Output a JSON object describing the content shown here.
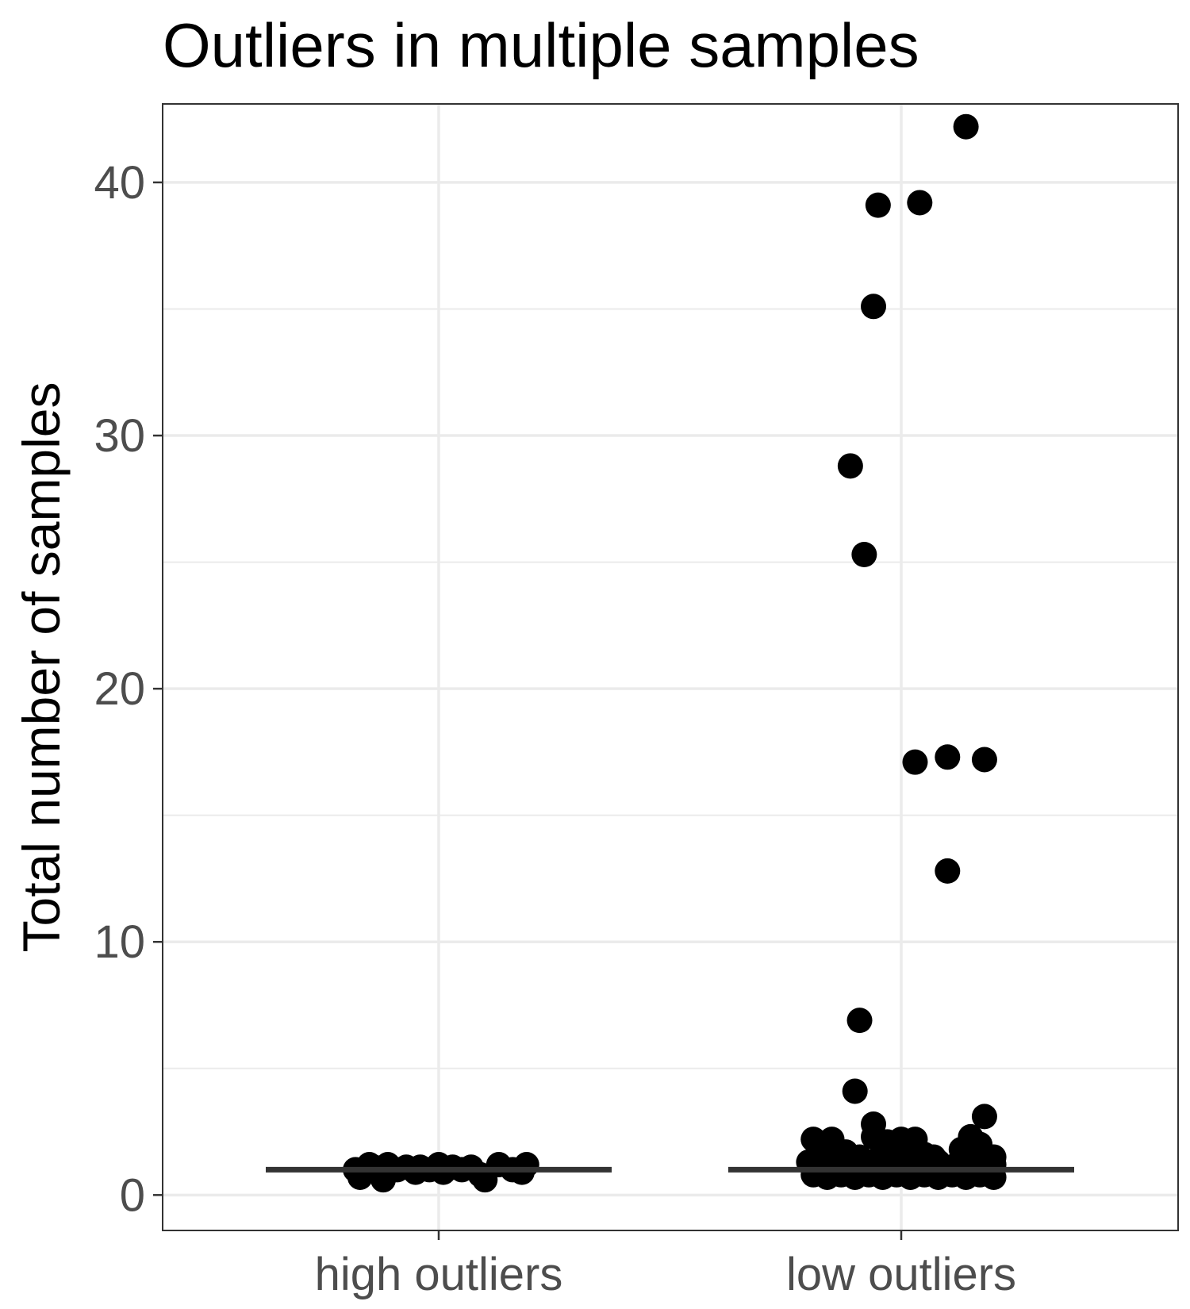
{
  "chart_data": {
    "type": "scatter",
    "title": "Outliers in multiple samples",
    "xlabel": "",
    "ylabel": "Total number of samples",
    "categories": [
      "high outliers",
      "low outliers"
    ],
    "ylim": [
      -1.4,
      43.1
    ],
    "yticks": [
      0,
      10,
      20,
      30,
      40
    ],
    "grid": true,
    "legend": "none",
    "colors": {
      "points": "#000000",
      "median_line": "#333333",
      "grid": "#ebebeb",
      "panel_border": "#333333"
    },
    "median": [
      1,
      1
    ],
    "series": [
      {
        "category": "high outliers",
        "points": [
          {
            "x": -0.18,
            "y": 1.0
          },
          {
            "x": -0.16,
            "y": 0.9
          },
          {
            "x": -0.14,
            "y": 1.1
          },
          {
            "x": -0.17,
            "y": 0.7
          },
          {
            "x": -0.15,
            "y": 1.2
          },
          {
            "x": -0.12,
            "y": 0.8
          },
          {
            "x": -0.11,
            "y": 1.2
          },
          {
            "x": -0.12,
            "y": 0.6
          },
          {
            "x": -0.09,
            "y": 1.0
          },
          {
            "x": -0.07,
            "y": 1.1
          },
          {
            "x": -0.05,
            "y": 0.9
          },
          {
            "x": -0.04,
            "y": 1.1
          },
          {
            "x": -0.02,
            "y": 1.0
          },
          {
            "x": 0.0,
            "y": 1.2
          },
          {
            "x": 0.01,
            "y": 0.9
          },
          {
            "x": 0.03,
            "y": 1.1
          },
          {
            "x": 0.05,
            "y": 1.0
          },
          {
            "x": 0.07,
            "y": 1.1
          },
          {
            "x": 0.09,
            "y": 0.8
          },
          {
            "x": 0.1,
            "y": 0.6
          },
          {
            "x": 0.13,
            "y": 1.2
          },
          {
            "x": 0.16,
            "y": 1.0
          },
          {
            "x": 0.19,
            "y": 1.2
          },
          {
            "x": 0.18,
            "y": 0.9
          }
        ]
      },
      {
        "category": "low outliers",
        "points": [
          {
            "x": 0.14,
            "y": 42.2
          },
          {
            "x": 0.04,
            "y": 39.2
          },
          {
            "x": -0.05,
            "y": 39.1
          },
          {
            "x": -0.06,
            "y": 35.1
          },
          {
            "x": -0.11,
            "y": 28.8
          },
          {
            "x": -0.08,
            "y": 25.3
          },
          {
            "x": 0.03,
            "y": 17.1
          },
          {
            "x": 0.1,
            "y": 17.3
          },
          {
            "x": 0.18,
            "y": 17.2
          },
          {
            "x": 0.1,
            "y": 12.8
          },
          {
            "x": -0.09,
            "y": 6.9
          },
          {
            "x": -0.1,
            "y": 4.1
          },
          {
            "x": 0.18,
            "y": 3.1
          },
          {
            "x": -0.06,
            "y": 2.8
          },
          {
            "x": -0.19,
            "y": 2.2
          },
          {
            "x": -0.15,
            "y": 2.2
          },
          {
            "x": -0.06,
            "y": 2.3
          },
          {
            "x": -0.03,
            "y": 2.1
          },
          {
            "x": 0.0,
            "y": 2.2
          },
          {
            "x": 0.03,
            "y": 2.2
          },
          {
            "x": 0.15,
            "y": 2.3
          },
          {
            "x": 0.17,
            "y": 2.0
          },
          {
            "x": -0.17,
            "y": 1.9
          },
          {
            "x": -0.12,
            "y": 1.7
          },
          {
            "x": -0.09,
            "y": 1.5
          },
          {
            "x": -0.04,
            "y": 1.8
          },
          {
            "x": 0.02,
            "y": 1.7
          },
          {
            "x": 0.05,
            "y": 1.6
          },
          {
            "x": 0.07,
            "y": 1.5
          },
          {
            "x": 0.13,
            "y": 1.8
          },
          {
            "x": 0.18,
            "y": 1.6
          },
          {
            "x": 0.2,
            "y": 1.5
          },
          {
            "x": -0.2,
            "y": 1.3
          },
          {
            "x": -0.17,
            "y": 1.2
          },
          {
            "x": -0.14,
            "y": 1.3
          },
          {
            "x": -0.1,
            "y": 1.2
          },
          {
            "x": -0.07,
            "y": 1.3
          },
          {
            "x": -0.03,
            "y": 1.2
          },
          {
            "x": 0.0,
            "y": 1.3
          },
          {
            "x": 0.04,
            "y": 1.2
          },
          {
            "x": 0.08,
            "y": 1.3
          },
          {
            "x": 0.12,
            "y": 1.2
          },
          {
            "x": 0.16,
            "y": 1.3
          },
          {
            "x": 0.2,
            "y": 1.2
          },
          {
            "x": -0.19,
            "y": 0.8
          },
          {
            "x": -0.16,
            "y": 0.7
          },
          {
            "x": -0.13,
            "y": 0.8
          },
          {
            "x": -0.1,
            "y": 0.7
          },
          {
            "x": -0.07,
            "y": 0.8
          },
          {
            "x": -0.04,
            "y": 0.7
          },
          {
            "x": -0.01,
            "y": 0.8
          },
          {
            "x": 0.02,
            "y": 0.7
          },
          {
            "x": 0.05,
            "y": 0.8
          },
          {
            "x": 0.08,
            "y": 0.7
          },
          {
            "x": 0.11,
            "y": 0.8
          },
          {
            "x": 0.14,
            "y": 0.7
          },
          {
            "x": 0.17,
            "y": 0.8
          },
          {
            "x": 0.2,
            "y": 0.7
          },
          {
            "x": -0.18,
            "y": 1.0
          },
          {
            "x": -0.12,
            "y": 1.0
          },
          {
            "x": -0.06,
            "y": 1.0
          },
          {
            "x": 0.06,
            "y": 1.0
          },
          {
            "x": 0.12,
            "y": 1.0
          },
          {
            "x": 0.18,
            "y": 1.0
          }
        ]
      }
    ]
  }
}
